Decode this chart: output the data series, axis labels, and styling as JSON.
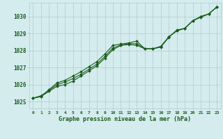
{
  "title": "Graphe pression niveau de la mer (hPa)",
  "background_color": "#d4ecee",
  "grid_color": "#b0cccc",
  "line_color": "#1a5c1a",
  "marker_color": "#1a5c1a",
  "xlim": [
    -0.5,
    23.5
  ],
  "ylim": [
    1024.6,
    1030.8
  ],
  "yticks": [
    1025,
    1026,
    1027,
    1028,
    1029,
    1030
  ],
  "xticks": [
    0,
    1,
    2,
    3,
    4,
    5,
    6,
    7,
    8,
    9,
    10,
    11,
    12,
    13,
    14,
    15,
    16,
    17,
    18,
    19,
    20,
    21,
    22,
    23
  ],
  "series1": {
    "x": [
      0,
      1,
      2,
      3,
      4,
      5,
      6,
      7,
      8,
      9,
      10,
      11,
      12,
      13,
      14,
      15,
      16,
      17,
      18,
      19,
      20,
      21,
      22,
      23
    ],
    "y": [
      1025.2,
      1025.3,
      1025.6,
      1025.9,
      1026.0,
      1026.2,
      1026.5,
      1026.8,
      1027.1,
      1027.55,
      1028.05,
      1028.3,
      1028.35,
      1028.3,
      1028.1,
      1028.1,
      1028.25,
      1028.8,
      1029.15,
      1029.3,
      1029.75,
      1030.0,
      1030.15,
      1030.55
    ]
  },
  "series2": {
    "x": [
      0,
      1,
      2,
      3,
      4,
      5,
      6,
      7,
      8,
      9,
      10,
      11,
      12,
      13,
      14,
      15,
      16,
      17,
      18,
      19,
      20,
      21,
      22,
      23
    ],
    "y": [
      1025.2,
      1025.3,
      1025.7,
      1026.1,
      1026.25,
      1026.5,
      1026.75,
      1027.05,
      1027.35,
      1027.8,
      1028.3,
      1028.38,
      1028.45,
      1028.55,
      1028.1,
      1028.1,
      1028.2,
      1028.78,
      1029.2,
      1029.3,
      1029.75,
      1029.95,
      1030.15,
      1030.55
    ]
  },
  "series3": {
    "x": [
      0,
      1,
      2,
      3,
      4,
      5,
      6,
      7,
      8,
      9,
      10,
      11,
      12,
      13,
      14,
      15,
      16,
      17,
      18,
      19,
      20,
      21,
      22,
      23
    ],
    "y": [
      1025.2,
      1025.35,
      1025.65,
      1026.0,
      1026.15,
      1026.35,
      1026.6,
      1026.9,
      1027.2,
      1027.65,
      1028.15,
      1028.32,
      1028.4,
      1028.4,
      1028.1,
      1028.1,
      1028.22,
      1028.79,
      1029.18,
      1029.3,
      1029.75,
      1029.97,
      1030.15,
      1030.55
    ]
  }
}
